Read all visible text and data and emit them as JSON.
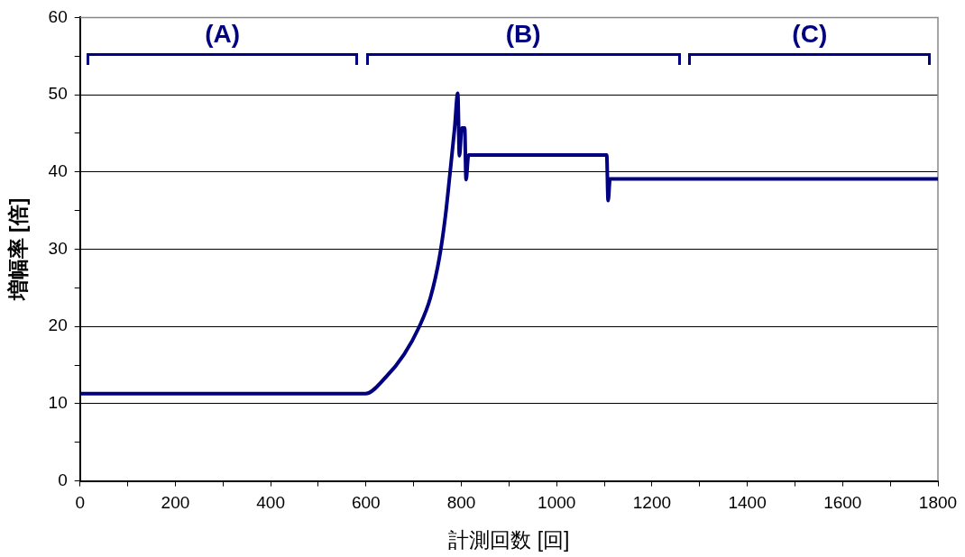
{
  "chart_data": {
    "type": "line",
    "xlabel": "計測回数 [回]",
    "ylabel": "増幅率 [倍]",
    "x": [
      0,
      599,
      641,
      680,
      712,
      735,
      754,
      767,
      776,
      786,
      792.5,
      796,
      801,
      807,
      810,
      815,
      1105,
      1108,
      1112,
      1800
    ],
    "series": [
      {
        "color": "#000080",
        "values": [
          11.3,
          11.3,
          13.4,
          16.4,
          20.0,
          23.7,
          28.9,
          34.5,
          39.7,
          45.7,
          50.2,
          42.1,
          45.7,
          45.7,
          39.0,
          42.2,
          42.2,
          36.3,
          39.1,
          39.1
        ]
      }
    ],
    "xlim": [
      0,
      1800
    ],
    "xticks": [
      0,
      {
        "value": 100,
        "label": null
      },
      200,
      {
        "value": 300,
        "label": null
      },
      400,
      {
        "value": 500,
        "label": null
      },
      600,
      {
        "value": 700,
        "label": null
      },
      800,
      {
        "value": 900,
        "label": null
      },
      1000,
      {
        "value": 1100,
        "label": null
      },
      1200,
      {
        "value": 1300,
        "label": null
      },
      1400,
      {
        "value": 1500,
        "label": null
      },
      1600,
      {
        "value": 1700,
        "label": null
      },
      1800
    ],
    "ylim": [
      0,
      60
    ],
    "yticks": [
      0,
      {
        "value": 5,
        "label": null
      },
      10,
      {
        "value": 15,
        "label": null
      },
      20,
      {
        "value": 25,
        "label": null
      },
      30,
      {
        "value": 35,
        "label": null
      },
      40,
      {
        "value": 45,
        "label": null
      },
      50,
      {
        "value": 55,
        "label": null
      },
      60
    ],
    "grid": "y",
    "legend": false,
    "marker": "none",
    "line_style": "solid",
    "annotations": [
      "(A)",
      "(B)",
      "(C)"
    ]
  }
}
